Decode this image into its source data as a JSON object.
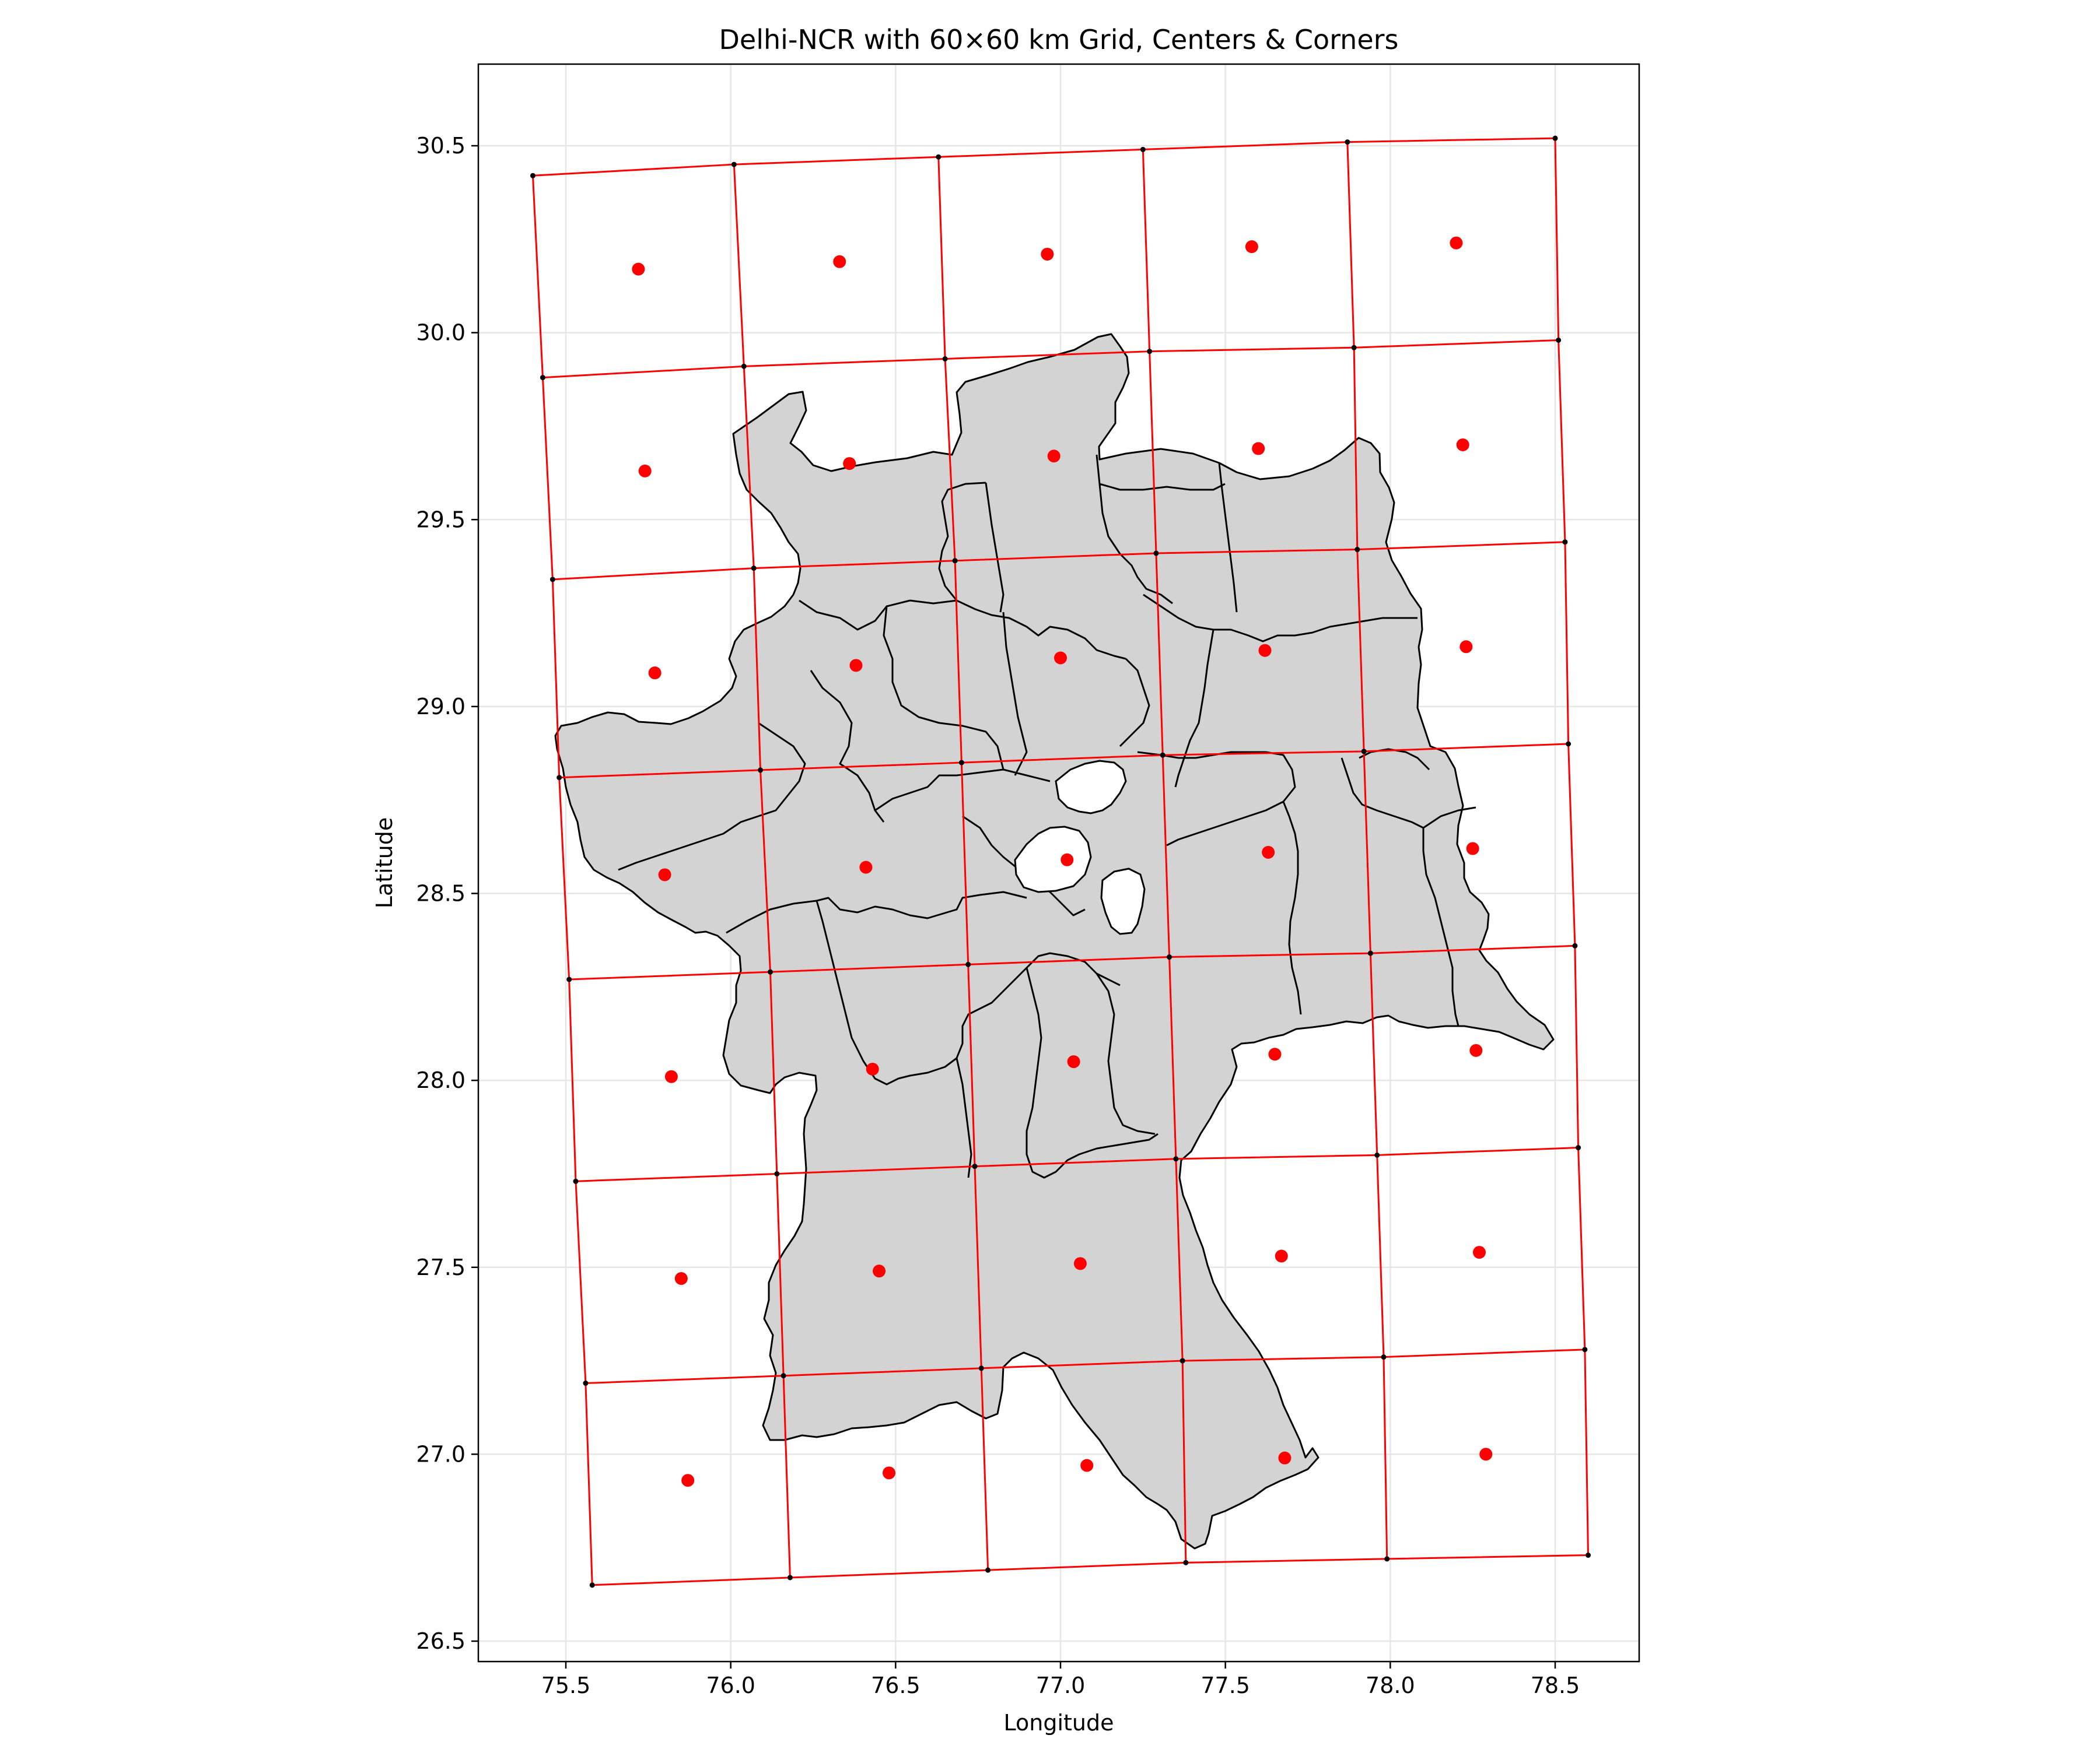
{
  "map": {
    "title": "Delhi-NCR with 60×60 km Grid, Centers & Corners",
    "xlabel": "Longitude",
    "ylabel": "Latitude",
    "colors": {
      "land": "#d3d3d3",
      "boundary": "#000000",
      "grid": "#ff0000",
      "center": "#ff0000",
      "corner": "#000000",
      "background": "#ffffff"
    }
  },
  "chart_data": {
    "type": "scatter",
    "title": "Delhi-NCR with 60×60 km Grid, Centers & Corners",
    "xlabel": "Longitude",
    "ylabel": "Latitude",
    "xlim": [
      75.25,
      78.75
    ],
    "ylim": [
      26.45,
      30.72
    ],
    "grid": true,
    "x_ticks": [
      "75.5",
      "76.0",
      "76.5",
      "77.0",
      "77.5",
      "78.0",
      "78.5"
    ],
    "y_ticks": [
      "26.5",
      "27.0",
      "27.5",
      "28.0",
      "28.5",
      "29.0",
      "29.5",
      "30.0",
      "30.5"
    ],
    "grid_corners_rows": [
      [
        [
          75.4,
          30.42
        ],
        [
          76.01,
          30.45
        ],
        [
          76.63,
          30.47
        ],
        [
          77.25,
          30.49
        ],
        [
          77.87,
          30.51
        ],
        [
          78.5,
          30.52
        ]
      ],
      [
        [
          75.43,
          29.88
        ],
        [
          76.04,
          29.91
        ],
        [
          76.65,
          29.93
        ],
        [
          77.27,
          29.95
        ],
        [
          77.89,
          29.96
        ],
        [
          78.51,
          29.98
        ]
      ],
      [
        [
          75.46,
          29.34
        ],
        [
          76.07,
          29.37
        ],
        [
          76.68,
          29.39
        ],
        [
          77.29,
          29.41
        ],
        [
          77.9,
          29.42
        ],
        [
          78.53,
          29.44
        ]
      ],
      [
        [
          75.48,
          28.81
        ],
        [
          76.09,
          28.83
        ],
        [
          76.7,
          28.85
        ],
        [
          77.31,
          28.87
        ],
        [
          77.92,
          28.88
        ],
        [
          78.54,
          28.9
        ]
      ],
      [
        [
          75.51,
          28.27
        ],
        [
          76.12,
          28.29
        ],
        [
          76.72,
          28.31
        ],
        [
          77.33,
          28.33
        ],
        [
          77.94,
          28.34
        ],
        [
          78.56,
          28.36
        ]
      ],
      [
        [
          75.53,
          27.73
        ],
        [
          76.14,
          27.75
        ],
        [
          76.74,
          27.77
        ],
        [
          77.35,
          27.79
        ],
        [
          77.96,
          27.8
        ],
        [
          78.57,
          27.82
        ]
      ],
      [
        [
          75.56,
          27.19
        ],
        [
          76.16,
          27.21
        ],
        [
          76.76,
          27.23
        ],
        [
          77.37,
          27.25
        ],
        [
          77.98,
          27.26
        ],
        [
          78.59,
          27.28
        ]
      ],
      [
        [
          75.58,
          26.65
        ],
        [
          76.18,
          26.67
        ],
        [
          76.78,
          26.69
        ],
        [
          77.38,
          26.71
        ],
        [
          77.99,
          26.72
        ],
        [
          78.6,
          26.73
        ]
      ]
    ],
    "cell_centers": [
      [
        75.72,
        30.17
      ],
      [
        76.33,
        30.19
      ],
      [
        76.96,
        30.21
      ],
      [
        77.58,
        30.23
      ],
      [
        78.2,
        30.24
      ],
      [
        75.74,
        29.63
      ],
      [
        76.36,
        29.65
      ],
      [
        76.98,
        29.67
      ],
      [
        77.6,
        29.69
      ],
      [
        78.22,
        29.7
      ],
      [
        75.77,
        29.09
      ],
      [
        76.38,
        29.11
      ],
      [
        77.0,
        29.13
      ],
      [
        77.62,
        29.15
      ],
      [
        78.23,
        29.16
      ],
      [
        75.8,
        28.55
      ],
      [
        76.41,
        28.57
      ],
      [
        77.02,
        28.59
      ],
      [
        77.63,
        28.61
      ],
      [
        78.25,
        28.62
      ],
      [
        75.82,
        28.01
      ],
      [
        76.43,
        28.03
      ],
      [
        77.04,
        28.05
      ],
      [
        77.65,
        28.07
      ],
      [
        78.26,
        28.08
      ],
      [
        75.85,
        27.47
      ],
      [
        76.45,
        27.49
      ],
      [
        77.06,
        27.51
      ],
      [
        77.67,
        27.53
      ],
      [
        78.27,
        27.54
      ],
      [
        75.87,
        26.93
      ],
      [
        76.48,
        26.95
      ],
      [
        77.08,
        26.97
      ],
      [
        77.68,
        26.99
      ],
      [
        78.29,
        27.0
      ]
    ]
  }
}
